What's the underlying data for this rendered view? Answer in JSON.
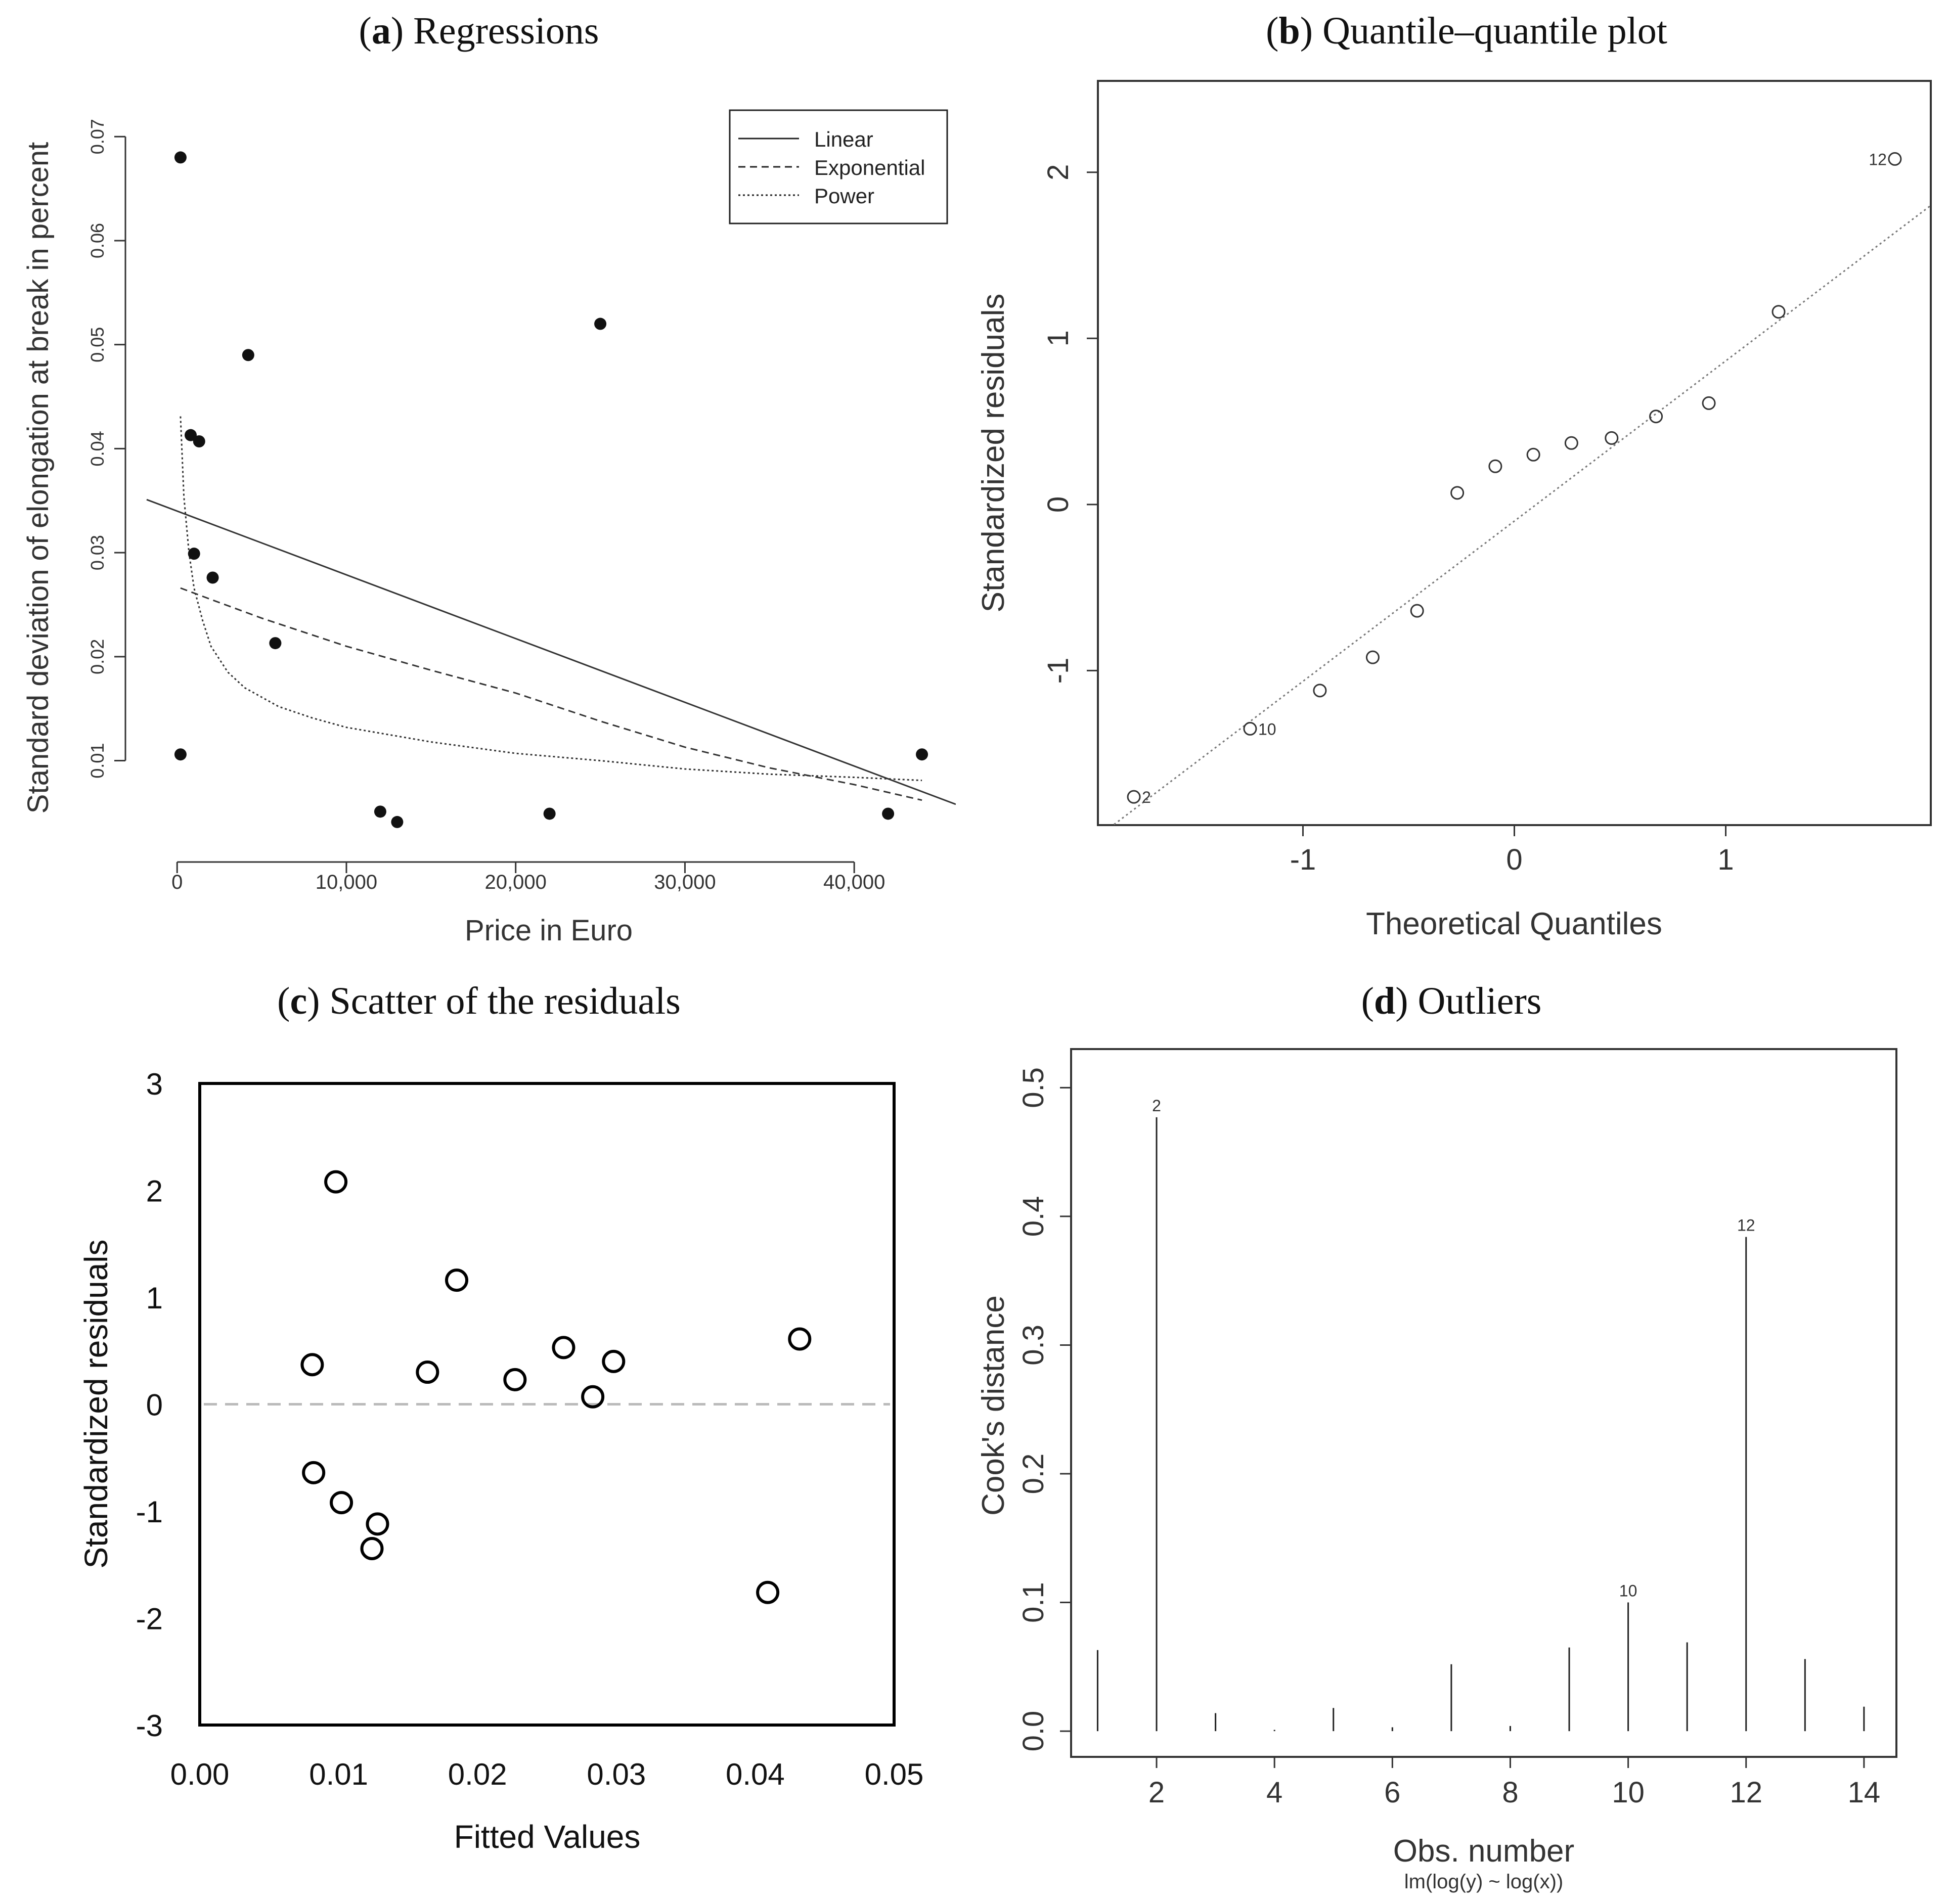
{
  "chart_data": [
    {
      "id": "a",
      "type": "scatter",
      "title_letter": "a",
      "title": "Regressions",
      "xlabel": "Price in Euro",
      "ylabel": "Standard deviation of elongation at break in percent",
      "xlim": [
        -1800,
        46000
      ],
      "ylim": [
        0.0022,
        0.0722
      ],
      "x_ticks": [
        0,
        10000,
        20000,
        30000,
        40000
      ],
      "x_tick_labels": [
        "0",
        "10,000",
        "20,000",
        "30,000",
        "40,000"
      ],
      "y_ticks": [
        0.01,
        0.02,
        0.03,
        0.04,
        0.05,
        0.06,
        0.07
      ],
      "y_tick_labels": [
        "0.01",
        "0.02",
        "0.03",
        "0.04",
        "0.05",
        "0.06",
        "0.07"
      ],
      "points": {
        "x": [
          200,
          200,
          800,
          1000,
          1300,
          2100,
          4200,
          5800,
          12000,
          13000,
          22000,
          25000,
          42000,
          44000
        ],
        "y": [
          0.068,
          0.0106,
          0.0413,
          0.0299,
          0.0407,
          0.0276,
          0.049,
          0.0213,
          0.0051,
          0.0041,
          0.0049,
          0.052,
          0.0049,
          0.0106
        ]
      },
      "legend": {
        "placement": "top-right",
        "entries": [
          {
            "label": "Linear",
            "style": "solid"
          },
          {
            "label": "Exponential",
            "style": "dashed"
          },
          {
            "label": "Power",
            "style": "dotted"
          }
        ]
      },
      "series": [
        {
          "name": "Linear",
          "x": [
            -1800,
            46000
          ],
          "y": [
            0.0351,
            0.0058
          ]
        },
        {
          "name": "Exponential",
          "x": [
            200,
            2000,
            5000,
            10000,
            15000,
            20000,
            25000,
            30000,
            35000,
            40000,
            44000
          ],
          "y": [
            0.0266,
            0.0255,
            0.0237,
            0.021,
            0.0187,
            0.0165,
            0.0138,
            0.0113,
            0.0093,
            0.0077,
            0.0062
          ]
        },
        {
          "name": "Power",
          "x": [
            200,
            400,
            700,
            1000,
            1500,
            2000,
            3000,
            4000,
            6000,
            8000,
            10000,
            15000,
            20000,
            25000,
            30000,
            35000,
            40000,
            44000
          ],
          "y": [
            0.0431,
            0.0354,
            0.03,
            0.0266,
            0.0235,
            0.021,
            0.0185,
            0.017,
            0.0152,
            0.0141,
            0.0132,
            0.0118,
            0.0107,
            0.01,
            0.0092,
            0.0087,
            0.0084,
            0.0081
          ]
        }
      ]
    },
    {
      "id": "b",
      "type": "scatter",
      "title_letter": "b",
      "title": "Quantile–quantile plot",
      "xlabel": "Theoretical Quantiles",
      "ylabel": "Standardized residuals",
      "xlim": [
        -1.97,
        1.97
      ],
      "ylim": [
        -1.93,
        2.55
      ],
      "x_ticks": [
        -1,
        0,
        1
      ],
      "x_tick_labels": [
        "-1",
        "0",
        "1"
      ],
      "y_ticks": [
        -1,
        0,
        1,
        2
      ],
      "y_tick_labels": [
        "-1",
        "0",
        "1",
        "2"
      ],
      "points": {
        "x": [
          -1.8,
          -1.25,
          -0.92,
          -0.67,
          -0.46,
          -0.27,
          -0.09,
          0.09,
          0.27,
          0.46,
          0.67,
          0.92,
          1.25,
          1.8
        ],
        "y": [
          -1.76,
          -1.35,
          -1.12,
          -0.92,
          -0.64,
          0.07,
          0.23,
          0.3,
          0.37,
          0.4,
          0.53,
          0.61,
          1.16,
          2.08
        ]
      },
      "point_labels": [
        {
          "text": "2",
          "x": -1.8,
          "y": -1.76
        },
        {
          "text": "10",
          "x": -1.25,
          "y": -1.35
        },
        {
          "text": "12",
          "x": 1.8,
          "y": 2.08
        }
      ],
      "reference_line": {
        "x": [
          -1.97,
          1.97
        ],
        "y": [
          -2.0,
          1.8
        ],
        "style": "dotted"
      }
    },
    {
      "id": "c",
      "type": "scatter",
      "title_letter": "c",
      "title": "Scatter of the residuals",
      "xlabel": "Fitted Values",
      "ylabel": "Standardized residuals",
      "xlim": [
        0.0,
        0.05
      ],
      "ylim": [
        -3,
        3
      ],
      "x_ticks": [
        0.0,
        0.01,
        0.02,
        0.03,
        0.04,
        0.05
      ],
      "x_tick_labels": [
        "0.00",
        "0.01",
        "0.02",
        "0.03",
        "0.04",
        "0.05"
      ],
      "y_ticks": [
        -3,
        -2,
        -1,
        0,
        1,
        2,
        3
      ],
      "y_tick_labels": [
        "-3",
        "-2",
        "-1",
        "0",
        "1",
        "2",
        "3"
      ],
      "points": {
        "x": [
          0.0098,
          0.0081,
          0.0082,
          0.0102,
          0.0128,
          0.0124,
          0.0164,
          0.0185,
          0.0227,
          0.0262,
          0.0283,
          0.0298,
          0.0409,
          0.0432
        ],
        "y": [
          2.08,
          0.37,
          -0.64,
          -0.92,
          -1.12,
          -1.35,
          0.3,
          1.16,
          0.23,
          0.53,
          0.07,
          0.4,
          -1.76,
          0.61
        ]
      },
      "zero_line": {
        "y": 0,
        "style": "dashed",
        "color": "#bbbbbb"
      }
    },
    {
      "id": "d",
      "type": "bar",
      "title_letter": "d",
      "title": "Outliers",
      "xlabel": "Obs. number",
      "ylabel": "Cook's distance",
      "subtitle": "lm(log(y) ~ log(x))",
      "xlim": [
        0.55,
        14.55
      ],
      "ylim": [
        -0.02,
        0.53
      ],
      "x_ticks": [
        2,
        4,
        6,
        8,
        10,
        12,
        14
      ],
      "x_tick_labels": [
        "2",
        "4",
        "6",
        "8",
        "10",
        "12",
        "14"
      ],
      "y_ticks": [
        0.0,
        0.1,
        0.2,
        0.3,
        0.4,
        0.5
      ],
      "y_tick_labels": [
        "0.0",
        "0.1",
        "0.2",
        "0.3",
        "0.4",
        "0.5"
      ],
      "categories": [
        1,
        2,
        3,
        4,
        5,
        6,
        7,
        8,
        9,
        10,
        11,
        12,
        13,
        14
      ],
      "values": [
        0.063,
        0.477,
        0.014,
        0.001,
        0.018,
        0.003,
        0.052,
        0.004,
        0.065,
        0.1,
        0.069,
        0.384,
        0.056,
        0.019
      ],
      "bar_labels": [
        {
          "text": "2",
          "obs": 2
        },
        {
          "text": "10",
          "obs": 10
        },
        {
          "text": "12",
          "obs": 12
        }
      ]
    }
  ]
}
